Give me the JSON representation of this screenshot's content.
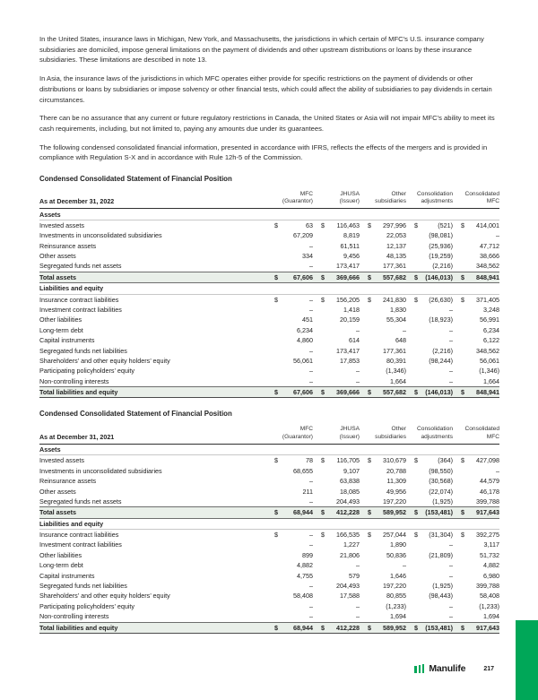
{
  "page": {
    "brand": "Manulife",
    "number": "217"
  },
  "colors": {
    "brand_green": "#00a758",
    "total_row_bg": "#e9efe9"
  },
  "paragraphs": [
    "In the United States, insurance laws in Michigan, New York, and Massachusetts, the jurisdictions in which certain of MFC’s U.S. insurance company subsidiaries are domiciled, impose general limitations on the payment of dividends and other upstream distributions or loans by these insurance subsidiaries. These limitations are described in note 13.",
    "In Asia, the insurance laws of the jurisdictions in which MFC operates either provide for specific restrictions on the payment of dividends or other distributions or loans by subsidiaries or impose solvency or other financial tests, which could affect the ability of subsidiaries to pay dividends in certain circumstances.",
    "There can be no assurance that any current or future regulatory restrictions in Canada, the United States or Asia will not impair MFC’s ability to meet its cash requirements, including, but not limited to, paying any amounts due under its guarantees.",
    "The following condensed consolidated financial information, presented in accordance with IFRS, reflects the effects of the mergers and is provided in compliance with Regulation S-X and in accordance with Rule 12h-5 of the Commission."
  ],
  "tables": [
    {
      "heading": "Condensed Consolidated Statement of Financial Position",
      "date_label": "As at December 31, 2022",
      "currency_symbol": "$",
      "columns": [
        "MFC\n(Guarantor)",
        "JHUSA\n(Issuer)",
        "Other\nsubsidiaries",
        "Consolidation\nadjustments",
        "Consolidated\nMFC"
      ],
      "rows": [
        {
          "type": "section",
          "label": "Assets"
        },
        {
          "type": "data",
          "dollar": true,
          "label": "Invested assets",
          "values": [
            "63",
            "116,463",
            "297,996",
            "(521)",
            "414,001"
          ]
        },
        {
          "type": "data",
          "dollar": false,
          "label": "Investments in unconsolidated subsidiaries",
          "values": [
            "67,209",
            "8,819",
            "22,053",
            "(98,081)",
            "–"
          ]
        },
        {
          "type": "data",
          "dollar": false,
          "label": "Reinsurance assets",
          "values": [
            "–",
            "61,511",
            "12,137",
            "(25,936)",
            "47,712"
          ]
        },
        {
          "type": "data",
          "dollar": false,
          "label": "Other assets",
          "values": [
            "334",
            "9,456",
            "48,135",
            "(19,259)",
            "38,666"
          ]
        },
        {
          "type": "data",
          "dollar": false,
          "label": "Segregated funds net assets",
          "values": [
            "–",
            "173,417",
            "177,361",
            "(2,216)",
            "348,562"
          ]
        },
        {
          "type": "total",
          "dollar": true,
          "label": "Total assets",
          "values": [
            "67,606",
            "369,666",
            "557,682",
            "(146,013)",
            "848,941"
          ]
        },
        {
          "type": "section",
          "label": "Liabilities and equity"
        },
        {
          "type": "data",
          "dollar": true,
          "label": "Insurance contract liabilities",
          "values": [
            "–",
            "156,205",
            "241,830",
            "(26,630)",
            "371,405"
          ]
        },
        {
          "type": "data",
          "dollar": false,
          "label": "Investment contract liabilities",
          "values": [
            "–",
            "1,418",
            "1,830",
            "–",
            "3,248"
          ]
        },
        {
          "type": "data",
          "dollar": false,
          "label": "Other liabilities",
          "values": [
            "451",
            "20,159",
            "55,304",
            "(18,923)",
            "56,991"
          ]
        },
        {
          "type": "data",
          "dollar": false,
          "label": "Long-term debt",
          "values": [
            "6,234",
            "–",
            "–",
            "–",
            "6,234"
          ]
        },
        {
          "type": "data",
          "dollar": false,
          "label": "Capital instruments",
          "values": [
            "4,860",
            "614",
            "648",
            "–",
            "6,122"
          ]
        },
        {
          "type": "data",
          "dollar": false,
          "label": "Segregated funds net liabilities",
          "values": [
            "–",
            "173,417",
            "177,361",
            "(2,216)",
            "348,562"
          ]
        },
        {
          "type": "data",
          "dollar": false,
          "label": "Shareholders’ and other equity holders’ equity",
          "values": [
            "56,061",
            "17,853",
            "80,391",
            "(98,244)",
            "56,061"
          ]
        },
        {
          "type": "data",
          "dollar": false,
          "label": "Participating policyholders’ equity",
          "values": [
            "–",
            "–",
            "(1,346)",
            "–",
            "(1,346)"
          ]
        },
        {
          "type": "data",
          "dollar": false,
          "label": "Non-controlling interests",
          "values": [
            "–",
            "–",
            "1,664",
            "–",
            "1,664"
          ]
        },
        {
          "type": "total",
          "dollar": true,
          "label": "Total liabilities and equity",
          "values": [
            "67,606",
            "369,666",
            "557,682",
            "(146,013)",
            "848,941"
          ]
        }
      ]
    },
    {
      "heading": "Condensed Consolidated Statement of Financial Position",
      "date_label": "As at December 31, 2021",
      "currency_symbol": "$",
      "columns": [
        "MFC\n(Guarantor)",
        "JHUSA\n(Issuer)",
        "Other\nsubsidiaries",
        "Consolidation\nadjustments",
        "Consolidated\nMFC"
      ],
      "rows": [
        {
          "type": "section",
          "label": "Assets"
        },
        {
          "type": "data",
          "dollar": true,
          "label": "Invested assets",
          "values": [
            "78",
            "116,705",
            "310,679",
            "(364)",
            "427,098"
          ]
        },
        {
          "type": "data",
          "dollar": false,
          "label": "Investments in unconsolidated subsidiaries",
          "values": [
            "68,655",
            "9,107",
            "20,788",
            "(98,550)",
            "–"
          ]
        },
        {
          "type": "data",
          "dollar": false,
          "label": "Reinsurance assets",
          "values": [
            "–",
            "63,838",
            "11,309",
            "(30,568)",
            "44,579"
          ]
        },
        {
          "type": "data",
          "dollar": false,
          "label": "Other assets",
          "values": [
            "211",
            "18,085",
            "49,956",
            "(22,074)",
            "46,178"
          ]
        },
        {
          "type": "data",
          "dollar": false,
          "label": "Segregated funds net assets",
          "values": [
            "–",
            "204,493",
            "197,220",
            "(1,925)",
            "399,788"
          ]
        },
        {
          "type": "total",
          "dollar": true,
          "label": "Total assets",
          "values": [
            "68,944",
            "412,228",
            "589,952",
            "(153,481)",
            "917,643"
          ]
        },
        {
          "type": "section",
          "label": "Liabilities and equity"
        },
        {
          "type": "data",
          "dollar": true,
          "label": "Insurance contract liabilities",
          "values": [
            "–",
            "166,535",
            "257,044",
            "(31,304)",
            "392,275"
          ]
        },
        {
          "type": "data",
          "dollar": false,
          "label": "Investment contract liabilities",
          "values": [
            "–",
            "1,227",
            "1,890",
            "–",
            "3,117"
          ]
        },
        {
          "type": "data",
          "dollar": false,
          "label": "Other liabilities",
          "values": [
            "899",
            "21,806",
            "50,836",
            "(21,809)",
            "51,732"
          ]
        },
        {
          "type": "data",
          "dollar": false,
          "label": "Long-term debt",
          "values": [
            "4,882",
            "–",
            "–",
            "–",
            "4,882"
          ]
        },
        {
          "type": "data",
          "dollar": false,
          "label": "Capital instruments",
          "values": [
            "4,755",
            "579",
            "1,646",
            "–",
            "6,980"
          ]
        },
        {
          "type": "data",
          "dollar": false,
          "label": "Segregated funds net liabilities",
          "values": [
            "–",
            "204,493",
            "197,220",
            "(1,925)",
            "399,788"
          ]
        },
        {
          "type": "data",
          "dollar": false,
          "label": "Shareholders’ and other equity holders’ equity",
          "values": [
            "58,408",
            "17,588",
            "80,855",
            "(98,443)",
            "58,408"
          ]
        },
        {
          "type": "data",
          "dollar": false,
          "label": "Participating policyholders’ equity",
          "values": [
            "–",
            "–",
            "(1,233)",
            "–",
            "(1,233)"
          ]
        },
        {
          "type": "data",
          "dollar": false,
          "label": "Non-controlling interests",
          "values": [
            "–",
            "–",
            "1,694",
            "–",
            "1,694"
          ]
        },
        {
          "type": "total",
          "dollar": true,
          "label": "Total liabilities and equity",
          "values": [
            "68,944",
            "412,228",
            "589,952",
            "(153,481)",
            "917,643"
          ]
        }
      ]
    }
  ]
}
